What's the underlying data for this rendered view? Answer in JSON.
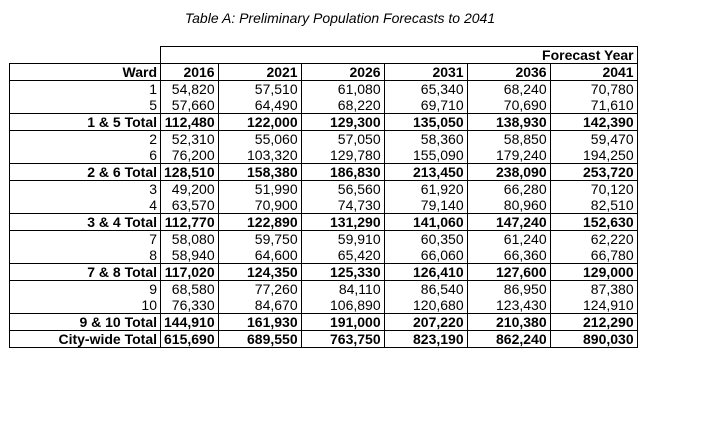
{
  "title": "Table A: Preliminary Population Forecasts to 2041",
  "group_header": "Forecast Year",
  "columns": [
    "Ward",
    "2016",
    "2021",
    "2026",
    "2031",
    "2036",
    "2041"
  ],
  "rows": [
    {
      "ward": "1",
      "values": [
        "54,820",
        "57,510",
        "61,080",
        "65,340",
        "68,240",
        "70,780"
      ],
      "total": false
    },
    {
      "ward": "5",
      "values": [
        "57,660",
        "64,490",
        "68,220",
        "69,710",
        "70,690",
        "71,610"
      ],
      "total": false
    },
    {
      "ward": "1 & 5 Total",
      "values": [
        "112,480",
        "122,000",
        "129,300",
        "135,050",
        "138,930",
        "142,390"
      ],
      "total": true
    },
    {
      "ward": "2",
      "values": [
        "52,310",
        "55,060",
        "57,050",
        "58,360",
        "58,850",
        "59,470"
      ],
      "total": false
    },
    {
      "ward": "6",
      "values": [
        "76,200",
        "103,320",
        "129,780",
        "155,090",
        "179,240",
        "194,250"
      ],
      "total": false
    },
    {
      "ward": "2 & 6 Total",
      "values": [
        "128,510",
        "158,380",
        "186,830",
        "213,450",
        "238,090",
        "253,720"
      ],
      "total": true
    },
    {
      "ward": "3",
      "values": [
        "49,200",
        "51,990",
        "56,560",
        "61,920",
        "66,280",
        "70,120"
      ],
      "total": false
    },
    {
      "ward": "4",
      "values": [
        "63,570",
        "70,900",
        "74,730",
        "79,140",
        "80,960",
        "82,510"
      ],
      "total": false
    },
    {
      "ward": "3 & 4 Total",
      "values": [
        "112,770",
        "122,890",
        "131,290",
        "141,060",
        "147,240",
        "152,630"
      ],
      "total": true
    },
    {
      "ward": "7",
      "values": [
        "58,080",
        "59,750",
        "59,910",
        "60,350",
        "61,240",
        "62,220"
      ],
      "total": false
    },
    {
      "ward": "8",
      "values": [
        "58,940",
        "64,600",
        "65,420",
        "66,060",
        "66,360",
        "66,780"
      ],
      "total": false
    },
    {
      "ward": "7 & 8 Total",
      "values": [
        "117,020",
        "124,350",
        "125,330",
        "126,410",
        "127,600",
        "129,000"
      ],
      "total": true
    },
    {
      "ward": "9",
      "values": [
        "68,580",
        "77,260",
        "84,110",
        "86,540",
        "86,950",
        "87,380"
      ],
      "total": false
    },
    {
      "ward": "10",
      "values": [
        "76,330",
        "84,670",
        "106,890",
        "120,680",
        "123,430",
        "124,910"
      ],
      "total": false
    },
    {
      "ward": "9 & 10 Total",
      "values": [
        "144,910",
        "161,930",
        "191,000",
        "207,220",
        "210,380",
        "212,290"
      ],
      "total": true
    },
    {
      "ward": "City-wide Total",
      "values": [
        "615,690",
        "689,550",
        "763,750",
        "823,190",
        "862,240",
        "890,030"
      ],
      "total": true
    }
  ]
}
